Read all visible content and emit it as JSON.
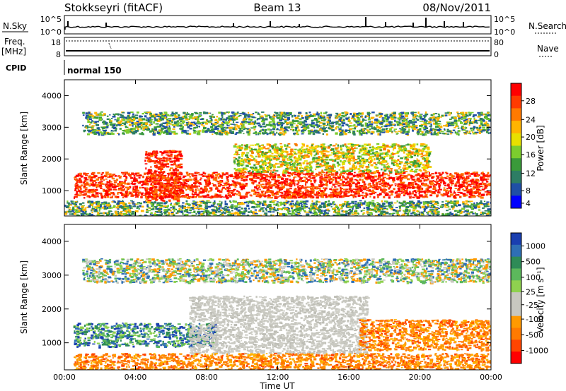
{
  "header": {
    "station": "Stokkseyri (fitACF)",
    "beam": "Beam 13",
    "date": "08/Nov/2011"
  },
  "top_panels": {
    "nsky_label": "N.Sky",
    "nsky_ticks": [
      "10^5",
      "10^0"
    ],
    "nsearch_label": "N.Search",
    "nsearch_ticks": [
      "10^5",
      "10^0"
    ],
    "freq_label_1": "Freq.",
    "freq_label_2": "[MHz]",
    "freq_ticks": [
      "18",
      "8"
    ],
    "nave_label": "Nave",
    "nave_ticks": [
      "80",
      "0"
    ],
    "cpid_label": "CPID",
    "cpid_value": "normal 150"
  },
  "chart_data": [
    {
      "type": "heatmap",
      "title": "",
      "xlabel": "",
      "ylabel": "Slant Range [km]",
      "ylim": [
        200,
        4500
      ],
      "yticks": [
        "4000",
        "3000",
        "2000",
        "1000"
      ],
      "colorbar": {
        "label": "Power [dB]",
        "ticks": [
          "28",
          "24",
          "20",
          "16",
          "12",
          "8",
          "4"
        ],
        "colors": [
          "#ff0000",
          "#ff3b00",
          "#ff7a00",
          "#ffb400",
          "#e8e000",
          "#7ccd2e",
          "#3a9a3a",
          "#2d7d64",
          "#1f4fa6",
          "#0000ff"
        ]
      },
      "regions": [
        {
          "t_start": 0.5,
          "t_end": 24.0,
          "r_min": 800,
          "r_max": 1600,
          "level": "high"
        },
        {
          "t_start": 11.0,
          "t_end": 15.5,
          "r_min": 800,
          "r_max": 1000,
          "level": "high"
        },
        {
          "t_start": 4.5,
          "t_end": 6.5,
          "r_min": 700,
          "r_max": 2300,
          "level": "high"
        },
        {
          "t_start": 9.5,
          "t_end": 20.5,
          "r_min": 1600,
          "r_max": 2500,
          "level": "medium"
        },
        {
          "t_start": 1.0,
          "t_end": 24.0,
          "r_min": 2800,
          "r_max": 3500,
          "level": "low"
        },
        {
          "t_start": 0.0,
          "t_end": 24.0,
          "r_min": 200,
          "r_max": 700,
          "level": "low"
        }
      ]
    },
    {
      "type": "heatmap",
      "title": "",
      "xlabel": "Time UT",
      "ylabel": "Slant Range [km]",
      "ylim": [
        200,
        4500
      ],
      "yticks": [
        "4000",
        "3000",
        "2000",
        "1000"
      ],
      "xticks": [
        "00:00",
        "04:00",
        "08:00",
        "12:00",
        "16:00",
        "20:00",
        "00:00"
      ],
      "colorbar": {
        "label": "Velocity [m s⁻¹]",
        "ticks": [
          "1000",
          "500",
          "100",
          "25",
          "-25",
          "-100",
          "-500",
          "-1000"
        ],
        "colors": [
          "#1a3fb0",
          "#2f6fb5",
          "#2e8b57",
          "#5cb85c",
          "#8fd14f",
          "#c8c8c0",
          "#c8c8c0",
          "#ff9a00",
          "#ff7a00",
          "#ff4500",
          "#ff0000"
        ]
      },
      "regions": [
        {
          "t_start": 0.5,
          "t_end": 8.5,
          "r_min": 900,
          "r_max": 1600,
          "level": "positive"
        },
        {
          "t_start": 7.0,
          "t_end": 17.0,
          "r_min": 700,
          "r_max": 2400,
          "level": "near-zero"
        },
        {
          "t_start": 16.5,
          "t_end": 24.0,
          "r_min": 800,
          "r_max": 1700,
          "level": "negative"
        },
        {
          "t_start": 0.5,
          "t_end": 24.0,
          "r_min": 200,
          "r_max": 700,
          "level": "negative"
        },
        {
          "t_start": 1.0,
          "t_end": 24.0,
          "r_min": 2800,
          "r_max": 3500,
          "level": "mixed"
        }
      ]
    }
  ]
}
